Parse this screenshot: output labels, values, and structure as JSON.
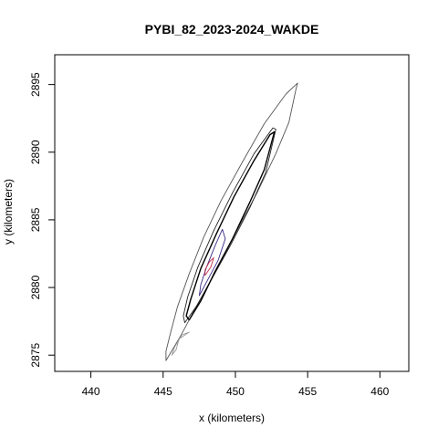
{
  "chart_data": {
    "type": "contour",
    "title": "PYBI_82_2023-2024_WAKDE",
    "xlabel": "x (kilometers)",
    "ylabel": "y (kilometers)",
    "xlim": [
      437.5,
      462
    ],
    "ylim": [
      2873.8,
      2897.2
    ],
    "x_ticks": [
      440,
      445,
      450,
      455,
      460
    ],
    "y_ticks": [
      2875,
      2880,
      2885,
      2890,
      2895
    ],
    "x_tick_labels": [
      "440",
      "445",
      "450",
      "455",
      "460"
    ],
    "y_tick_labels": [
      "2875",
      "2880",
      "2885",
      "2890",
      "2895"
    ],
    "grid": false,
    "legend": "none",
    "contours": [
      {
        "name": "outer",
        "color": "#555555",
        "points": [
          [
            445.2,
            2874.6
          ],
          [
            446.2,
            2876.4
          ],
          [
            447.3,
            2878.6
          ],
          [
            448.7,
            2881.3
          ],
          [
            450.0,
            2884.0
          ],
          [
            451.5,
            2887.0
          ],
          [
            452.8,
            2889.9
          ],
          [
            453.7,
            2892.2
          ],
          [
            454.2,
            2894.7
          ],
          [
            454.3,
            2895.1
          ],
          [
            453.5,
            2894.3
          ],
          [
            452.0,
            2892.1
          ],
          [
            450.5,
            2889.3
          ],
          [
            449.0,
            2886.4
          ],
          [
            447.8,
            2883.7
          ],
          [
            446.8,
            2881.0
          ],
          [
            446.0,
            2878.6
          ],
          [
            445.5,
            2876.6
          ],
          [
            445.2,
            2875.3
          ]
        ]
      },
      {
        "name": "mid",
        "color": "#222222",
        "points": [
          [
            446.5,
            2877.4
          ],
          [
            447.3,
            2878.6
          ],
          [
            448.3,
            2880.5
          ],
          [
            449.7,
            2883.2
          ],
          [
            451.0,
            2885.9
          ],
          [
            452.1,
            2888.5
          ],
          [
            452.8,
            2891.7
          ],
          [
            452.6,
            2891.8
          ],
          [
            451.3,
            2889.9
          ],
          [
            449.8,
            2887.0
          ],
          [
            448.5,
            2884.2
          ],
          [
            447.4,
            2881.5
          ],
          [
            446.7,
            2879.3
          ],
          [
            446.4,
            2877.9
          ]
        ]
      },
      {
        "name": "inner",
        "color": "#000000",
        "points": [
          [
            446.8,
            2877.6
          ],
          [
            447.6,
            2879.0
          ],
          [
            448.6,
            2881.2
          ],
          [
            449.8,
            2883.6
          ],
          [
            451.0,
            2886.3
          ],
          [
            452.0,
            2888.7
          ],
          [
            452.7,
            2891.5
          ],
          [
            452.4,
            2891.3
          ],
          [
            451.3,
            2889.4
          ],
          [
            449.9,
            2886.7
          ],
          [
            448.7,
            2884.0
          ],
          [
            447.6,
            2881.4
          ],
          [
            446.9,
            2879.1
          ],
          [
            446.6,
            2877.9
          ]
        ]
      },
      {
        "name": "core",
        "color": "#3b2a86",
        "points": [
          [
            447.5,
            2879.4
          ],
          [
            448.1,
            2880.6
          ],
          [
            448.8,
            2882.0
          ],
          [
            449.3,
            2883.6
          ],
          [
            449.1,
            2884.3
          ],
          [
            448.6,
            2883.1
          ],
          [
            448.0,
            2881.5
          ],
          [
            447.6,
            2880.2
          ]
        ]
      },
      {
        "name": "hotspot",
        "color": "#c0304c",
        "points": [
          [
            447.9,
            2880.9
          ],
          [
            448.3,
            2881.5
          ],
          [
            448.5,
            2882.2
          ],
          [
            448.2,
            2881.9
          ],
          [
            447.9,
            2881.3
          ]
        ]
      },
      {
        "name": "tail",
        "color": "#9a9a9a",
        "points": [
          [
            446.1,
            2876.2
          ],
          [
            446.8,
            2876.7
          ],
          [
            446.3,
            2876.5
          ],
          [
            445.8,
            2875.6
          ],
          [
            445.6,
            2875.0
          ],
          [
            445.9,
            2875.4
          ]
        ]
      }
    ]
  }
}
